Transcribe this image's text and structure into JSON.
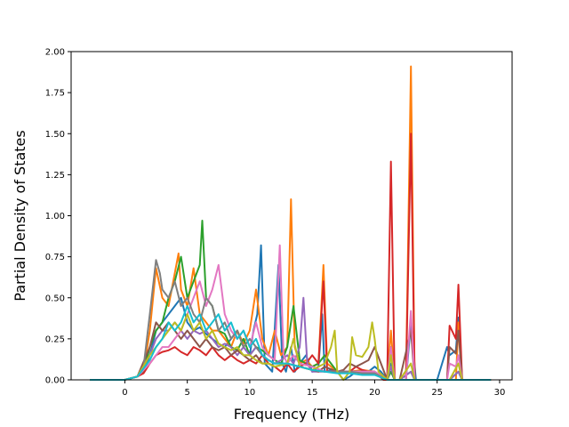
{
  "chart_data": {
    "type": "line",
    "title": "",
    "xlabel": "Frequency (THz)",
    "ylabel": "Partial Density of States",
    "xlim": [
      -4.3,
      31.0
    ],
    "ylim": [
      0.0,
      2.0
    ],
    "xticks": [
      0,
      5,
      10,
      15,
      20,
      25,
      30
    ],
    "yticks": [
      0.0,
      0.25,
      0.5,
      0.75,
      1.0,
      1.25,
      1.5,
      1.75,
      2.0
    ],
    "xtick_labels": [
      "0",
      "5",
      "10",
      "15",
      "20",
      "25",
      "30"
    ],
    "ytick_labels": [
      "0.00",
      "0.25",
      "0.50",
      "0.75",
      "1.00",
      "1.25",
      "1.50",
      "1.75",
      "2.00"
    ],
    "grid": false,
    "legend": "none",
    "series": [
      {
        "color": "#1f77b4",
        "x": [
          -2.8,
          0,
          1,
          1.5,
          2,
          2.5,
          3,
          3.5,
          4,
          4.5,
          5,
          5.5,
          6,
          6.5,
          7,
          7.5,
          8,
          8.5,
          9,
          9.5,
          10,
          10.3,
          10.6,
          10.9,
          11.2,
          11.8,
          12.3,
          12.6,
          12.9,
          13.3,
          13.6,
          14,
          14.5,
          15,
          15.5,
          15.8,
          16,
          16.5,
          17,
          17.5,
          18,
          18.5,
          19,
          19.5,
          20,
          20.5,
          21,
          21.3,
          21.6,
          22,
          22.5,
          22.9,
          23.3,
          24,
          25,
          25.8,
          26,
          26.5,
          26.7,
          27,
          28,
          29.3
        ],
        "y": [
          0,
          0,
          0.02,
          0.05,
          0.15,
          0.3,
          0.35,
          0.4,
          0.45,
          0.5,
          0.35,
          0.3,
          0.32,
          0.28,
          0.25,
          0.22,
          0.2,
          0.25,
          0.3,
          0.2,
          0.15,
          0.3,
          0.4,
          0.82,
          0.1,
          0.05,
          0.7,
          0.1,
          0.05,
          0.2,
          0.05,
          0.1,
          0.15,
          0.05,
          0.08,
          0.4,
          0.05,
          0.06,
          0.05,
          0,
          0.02,
          0.05,
          0.05,
          0.05,
          0.08,
          0.05,
          0,
          0.1,
          0,
          0,
          0,
          0.35,
          0,
          0,
          0,
          0.2,
          0.15,
          0.18,
          0.38,
          0,
          0,
          0
        ]
      },
      {
        "color": "#ff7f0e",
        "x": [
          -2.8,
          0,
          1,
          1.5,
          2,
          2.5,
          3,
          3.5,
          4,
          4.3,
          4.5,
          5,
          5.5,
          6,
          6.5,
          7,
          7.5,
          8,
          8.5,
          9,
          9.5,
          10,
          10.5,
          11,
          11.5,
          12,
          12.5,
          13,
          13.3,
          13.6,
          14,
          14.5,
          15,
          15.5,
          15.9,
          16.2,
          17,
          18,
          19,
          20,
          20.7,
          21,
          21.3,
          21.6,
          22,
          22.5,
          22.9,
          23.2,
          24,
          25,
          26,
          26.5,
          26.7,
          27,
          28,
          29.3
        ],
        "y": [
          0,
          0,
          0.02,
          0.06,
          0.3,
          0.68,
          0.5,
          0.45,
          0.65,
          0.77,
          0.55,
          0.45,
          0.68,
          0.4,
          0.35,
          0.3,
          0.3,
          0.25,
          0.2,
          0.3,
          0.22,
          0.3,
          0.55,
          0.25,
          0.15,
          0.3,
          0.15,
          0.2,
          1.1,
          0.2,
          0.1,
          0.12,
          0.08,
          0.1,
          0.7,
          0.1,
          0.05,
          0.05,
          0.06,
          0.05,
          0,
          0,
          0.3,
          0,
          0,
          0,
          1.91,
          0,
          0,
          0,
          0,
          0,
          0.35,
          0,
          0,
          0
        ]
      },
      {
        "color": "#2ca02c",
        "x": [
          -2.8,
          0,
          1,
          1.5,
          2,
          2.5,
          3,
          3.5,
          4,
          4.5,
          5,
          5.5,
          6,
          6.2,
          6.5,
          7,
          7.5,
          8,
          8.5,
          9,
          9.5,
          10,
          10.5,
          11,
          11.5,
          12,
          12.5,
          13,
          13.5,
          14,
          14.5,
          15,
          15.5,
          16,
          16.5,
          17,
          18,
          19,
          20,
          21,
          21.3,
          21.6,
          22,
          22.9,
          23.2,
          24,
          25,
          26,
          26.7,
          27,
          29.3
        ],
        "y": [
          0,
          0,
          0.02,
          0.05,
          0.2,
          0.3,
          0.35,
          0.5,
          0.6,
          0.75,
          0.5,
          0.6,
          0.7,
          0.97,
          0.5,
          0.45,
          0.3,
          0.28,
          0.2,
          0.18,
          0.25,
          0.15,
          0.2,
          0.18,
          0.15,
          0.12,
          0.1,
          0.2,
          0.45,
          0.12,
          0.1,
          0.08,
          0.1,
          0.15,
          0.1,
          0.05,
          0.05,
          0.05,
          0.05,
          0,
          0.05,
          0,
          0,
          0.05,
          0,
          0,
          0,
          0,
          0.05,
          0,
          0
        ]
      },
      {
        "color": "#d62728",
        "x": [
          -2.8,
          0,
          1,
          1.5,
          2,
          2.5,
          3,
          3.5,
          4,
          4.5,
          5,
          5.5,
          6,
          6.5,
          7,
          7.5,
          8,
          8.5,
          9,
          9.5,
          10,
          10.5,
          11,
          11.5,
          12,
          12.5,
          13,
          13.5,
          14,
          14.5,
          15,
          15.5,
          15.9,
          16.2,
          17,
          18,
          18.5,
          19,
          19.5,
          20,
          20.7,
          21,
          21.3,
          21.6,
          22,
          22.5,
          22.9,
          23.2,
          24,
          25,
          25.8,
          26,
          26.5,
          26.7,
          27,
          28,
          29.3
        ],
        "y": [
          0,
          0,
          0.02,
          0.04,
          0.1,
          0.15,
          0.17,
          0.18,
          0.2,
          0.17,
          0.15,
          0.2,
          0.18,
          0.15,
          0.2,
          0.15,
          0.12,
          0.15,
          0.12,
          0.1,
          0.12,
          0.1,
          0.15,
          0.1,
          0.08,
          0.05,
          0.1,
          0.05,
          0.08,
          0.1,
          0.15,
          0.1,
          0.6,
          0.05,
          0.05,
          0.05,
          0.08,
          0.06,
          0.05,
          0.05,
          0,
          0,
          1.33,
          0,
          0,
          0,
          1.5,
          0,
          0,
          0,
          0,
          0.33,
          0.25,
          0.58,
          0,
          0,
          0
        ]
      },
      {
        "color": "#9467bd",
        "x": [
          -2.8,
          0,
          1,
          2,
          2.5,
          3,
          3.5,
          4,
          4.5,
          5,
          5.5,
          6,
          6.5,
          7,
          7.5,
          8,
          8.5,
          9,
          9.5,
          10,
          10.5,
          11,
          11.5,
          12,
          12.5,
          13,
          13.5,
          14,
          14.3,
          14.6,
          15,
          16,
          17,
          18,
          19,
          20,
          21,
          21.3,
          21.6,
          22,
          22.9,
          23.2,
          24,
          25,
          26,
          26.7,
          27,
          29.3
        ],
        "y": [
          0,
          0,
          0.02,
          0.15,
          0.25,
          0.3,
          0.3,
          0.35,
          0.3,
          0.25,
          0.3,
          0.28,
          0.3,
          0.25,
          0.2,
          0.22,
          0.2,
          0.15,
          0.2,
          0.15,
          0.2,
          0.15,
          0.12,
          0.1,
          0.12,
          0.15,
          0.1,
          0.2,
          0.5,
          0.1,
          0.05,
          0.05,
          0.05,
          0.05,
          0.05,
          0.05,
          0,
          0.08,
          0,
          0,
          0.05,
          0,
          0,
          0,
          0,
          0.05,
          0,
          0
        ]
      },
      {
        "color": "#8c564b",
        "x": [
          -2.8,
          0,
          1,
          2,
          2.5,
          3,
          3.5,
          4,
          4.5,
          5,
          5.5,
          6,
          6.5,
          7,
          7.5,
          8,
          8.5,
          9,
          9.5,
          10,
          10.5,
          11,
          11.5,
          12,
          13,
          14,
          15,
          15.5,
          16,
          17,
          17.5,
          18,
          18.5,
          19,
          19.5,
          20,
          20.5,
          21,
          21.3,
          21.6,
          22,
          22.9,
          23.2,
          24,
          25,
          25.8,
          26,
          26.5,
          26.7,
          27,
          29.3
        ],
        "y": [
          0,
          0,
          0.02,
          0.2,
          0.35,
          0.3,
          0.35,
          0.3,
          0.25,
          0.3,
          0.25,
          0.2,
          0.25,
          0.2,
          0.18,
          0.2,
          0.15,
          0.18,
          0.15,
          0.12,
          0.15,
          0.1,
          0.1,
          0.08,
          0.1,
          0.08,
          0.06,
          0.05,
          0.08,
          0.05,
          0.06,
          0.1,
          0.08,
          0.1,
          0.12,
          0.2,
          0.1,
          0,
          0.2,
          0,
          0,
          0.3,
          0,
          0,
          0,
          0,
          0.2,
          0.16,
          0.3,
          0,
          0
        ]
      },
      {
        "color": "#e377c2",
        "x": [
          -2.8,
          0,
          1,
          2,
          2.5,
          3,
          3.5,
          4,
          4.5,
          5,
          5.5,
          6,
          6.5,
          7,
          7.5,
          8,
          8.5,
          9,
          9.5,
          10,
          10.5,
          11,
          11.5,
          12,
          12.4,
          12.7,
          13,
          13.5,
          14,
          15,
          16,
          17,
          18,
          19,
          20,
          21,
          21.3,
          21.6,
          22,
          22.5,
          22.9,
          23.2,
          24,
          25,
          25.8,
          26,
          26.5,
          26.7,
          27,
          29.3
        ],
        "y": [
          0,
          0,
          0.02,
          0.1,
          0.15,
          0.2,
          0.2,
          0.25,
          0.3,
          0.4,
          0.5,
          0.6,
          0.45,
          0.55,
          0.7,
          0.4,
          0.3,
          0.25,
          0.3,
          0.2,
          0.35,
          0.2,
          0.15,
          0.12,
          0.82,
          0.15,
          0.1,
          0.15,
          0.1,
          0.08,
          0.05,
          0.05,
          0.05,
          0.05,
          0.05,
          0,
          0.2,
          0,
          0,
          0,
          0.42,
          0,
          0,
          0,
          0,
          0.1,
          0.08,
          0.15,
          0,
          0
        ]
      },
      {
        "color": "#7f7f7f",
        "x": [
          -2.8,
          0,
          1,
          1.5,
          2,
          2.5,
          2.8,
          3,
          3.5,
          4,
          4.5,
          5,
          5.5,
          6,
          6.5,
          7,
          7.5,
          8,
          8.5,
          9,
          9.5,
          10,
          10.5,
          11,
          11.5,
          12,
          13,
          14,
          15,
          16,
          17,
          18,
          19,
          20,
          21,
          22,
          23,
          24,
          25,
          26,
          27,
          29.3
        ],
        "y": [
          0,
          0,
          0.02,
          0.08,
          0.4,
          0.73,
          0.65,
          0.55,
          0.5,
          0.6,
          0.45,
          0.5,
          0.4,
          0.35,
          0.5,
          0.45,
          0.3,
          0.35,
          0.25,
          0.3,
          0.2,
          0.25,
          0.2,
          0.15,
          0.12,
          0.1,
          0.1,
          0.08,
          0.06,
          0.05,
          0.05,
          0.05,
          0.04,
          0.04,
          0,
          0,
          0,
          0,
          0,
          0,
          0,
          0
        ]
      },
      {
        "color": "#bcbd22",
        "x": [
          -2.8,
          0,
          1,
          2,
          2.5,
          3,
          3.5,
          4,
          4.5,
          5,
          5.5,
          6,
          6.5,
          7,
          7.5,
          8,
          8.5,
          9,
          9.5,
          10,
          10.5,
          11,
          11.5,
          12,
          13,
          13.5,
          14,
          15,
          16,
          16.5,
          16.8,
          17,
          17.5,
          18,
          18.2,
          18.5,
          19,
          19.5,
          19.8,
          20,
          20.3,
          21,
          21.3,
          21.6,
          22,
          22.9,
          23.2,
          24,
          25,
          26,
          26.7,
          27,
          29.3
        ],
        "y": [
          0,
          0,
          0.02,
          0.15,
          0.2,
          0.25,
          0.3,
          0.35,
          0.3,
          0.4,
          0.3,
          0.35,
          0.25,
          0.3,
          0.22,
          0.2,
          0.18,
          0.2,
          0.15,
          0.15,
          0.12,
          0.1,
          0.1,
          0.08,
          0.1,
          0.25,
          0.08,
          0.06,
          0.1,
          0.2,
          0.3,
          0.05,
          0,
          0.05,
          0.26,
          0.15,
          0.14,
          0.2,
          0.35,
          0.25,
          0.05,
          0,
          0.15,
          0,
          0,
          0.1,
          0,
          0,
          0,
          0,
          0.1,
          0,
          0
        ]
      },
      {
        "color": "#17becf",
        "x": [
          -2.8,
          0,
          1,
          2,
          2.5,
          3,
          3.5,
          4,
          4.5,
          5,
          5.5,
          6,
          6.5,
          7,
          7.5,
          8,
          8.5,
          9,
          9.5,
          10,
          10.5,
          11,
          11.5,
          12,
          13,
          14,
          15,
          16,
          17,
          18,
          19,
          20,
          21,
          22,
          23,
          24,
          25,
          26,
          27,
          29.3
        ],
        "y": [
          0,
          0,
          0.02,
          0.12,
          0.2,
          0.25,
          0.35,
          0.3,
          0.35,
          0.45,
          0.35,
          0.4,
          0.3,
          0.35,
          0.4,
          0.3,
          0.35,
          0.25,
          0.3,
          0.2,
          0.25,
          0.15,
          0.12,
          0.1,
          0.1,
          0.08,
          0.06,
          0.05,
          0.04,
          0.04,
          0.03,
          0.03,
          0,
          0,
          0,
          0,
          0,
          0,
          0,
          0
        ]
      }
    ]
  }
}
